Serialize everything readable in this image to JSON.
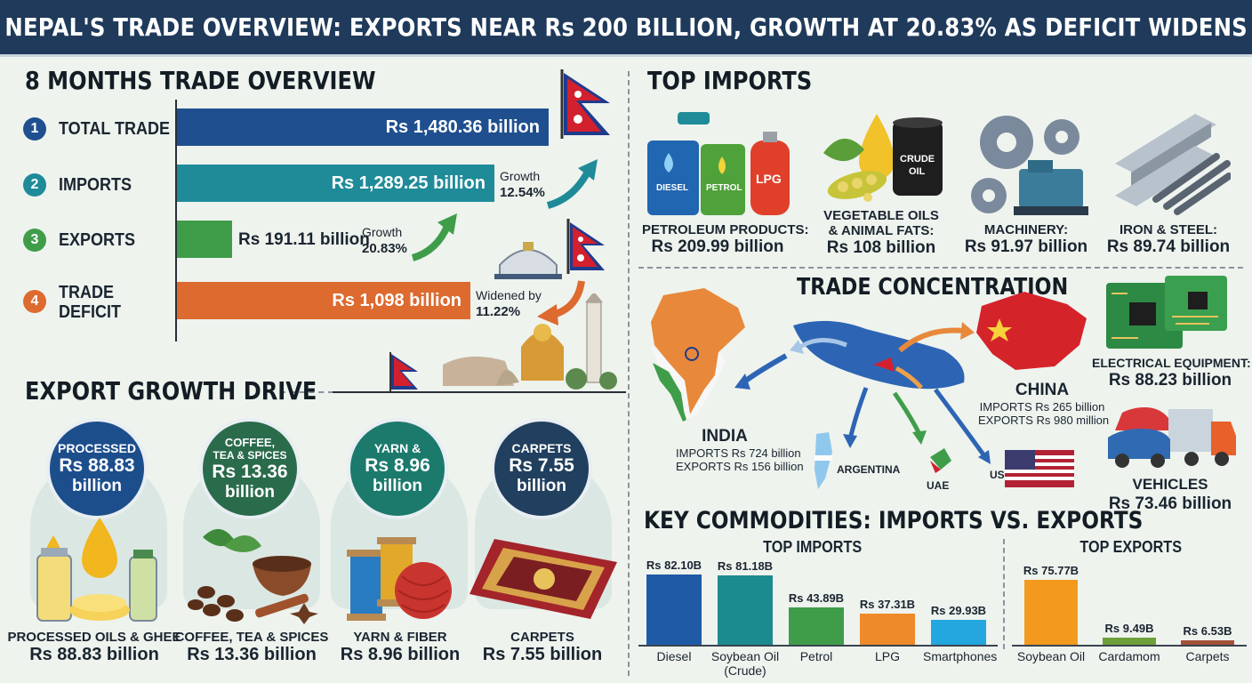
{
  "title": "NEPAL'S TRADE OVERVIEW: EXPORTS NEAR Rs 200 BILLION, GROWTH AT 20.83% AS DEFICIT WIDENS",
  "overview": {
    "heading": "8 MONTHS TRADE OVERVIEW",
    "rows": [
      {
        "num": "1",
        "label": "TOTAL TRADE",
        "value": "Rs 1,480.36 billion",
        "color": "#1f4f8f"
      },
      {
        "num": "2",
        "label": "IMPORTS",
        "value": "Rs 1,289.25 billion",
        "color": "#1f8b99",
        "note_label": "Growth",
        "note_value": "12.54%"
      },
      {
        "num": "3",
        "label": "EXPORTS",
        "value": "Rs 191.11 billion",
        "color": "#3f9d4a",
        "note_label": "Growth",
        "note_value": "20.83%"
      },
      {
        "num": "4",
        "label": "TRADE",
        "label2": "DEFICIT",
        "value": "Rs 1,098 billion",
        "color": "#dd6a2f",
        "note_label": "Widened by",
        "note_value": "11.22%"
      }
    ]
  },
  "export_growth": {
    "heading": "EXPORT GROWTH DRIVE",
    "items": [
      {
        "c1": "PROCESSED",
        "c2": "Rs 88.83",
        "c3": "billion",
        "cap1": "PROCESSED OILS & GHEE",
        "cap2": "Rs 88.83 billion",
        "color": "#1d4e8c"
      },
      {
        "c1": "COFFEE,",
        "c1b": "TEA & SPICES",
        "c2": "Rs 13.36",
        "c3": "billion",
        "cap1": "COFFEE, TEA & SPICES",
        "cap2": "Rs 13.36 billion",
        "color": "#2a6b4c"
      },
      {
        "c1": "YARN &",
        "c2": "Rs 8.96",
        "c3": "billion",
        "cap1": "YARN & FIBER",
        "cap2": "Rs 8.96 billion",
        "color": "#1b7a6c"
      },
      {
        "c1": "CARPETS",
        "c2": "Rs 7.55",
        "c3": "billion",
        "cap1": "CARPETS",
        "cap2": "Rs 7.55 billion",
        "color": "#213f5e"
      }
    ]
  },
  "top_imports": {
    "heading": "TOP IMPORTS",
    "items": [
      {
        "name": "PETROLEUM PRODUCTS:",
        "value": "Rs 209.99 billion"
      },
      {
        "name": "VEGETABLE OILS",
        "name2": "& ANIMAL FATS:",
        "value": "Rs 108 billion"
      },
      {
        "name": "MACHINERY:",
        "value": "Rs 91.97 billion"
      },
      {
        "name": "IRON & STEEL:",
        "value": "Rs 89.74 billion"
      }
    ],
    "fuel_labels": [
      "DIESEL",
      "PETROL",
      "LPG"
    ],
    "barrel_label": "CRUDE",
    "barrel_label2": "OIL"
  },
  "concentration": {
    "heading": "TRADE CONCENTRATION",
    "india": {
      "name": "INDIA",
      "imports": "IMPORTS Rs 724 billion",
      "exports": "EXPORTS Rs 156 billion"
    },
    "china": {
      "name": "CHINA",
      "imports": "IMPORTS Rs 265 billion",
      "exports": "EXPORTS Rs 980 million"
    },
    "others": [
      "ARGENTINA",
      "UAE",
      "US"
    ],
    "electrical": {
      "name": "ELECTRICAL EQUIPMENT:",
      "value": "Rs 88.23 billion"
    },
    "vehicles": {
      "name": "VEHICLES",
      "value": "Rs 73.46 billion"
    }
  },
  "commodities": {
    "heading": "KEY COMMODITIES: IMPORTS VS. EXPORTS",
    "imports_heading": "TOP IMPORTS",
    "exports_heading": "TOP EXPORTS"
  },
  "chart_data": [
    {
      "type": "bar",
      "title": "TOP IMPORTS",
      "categories": [
        "Diesel",
        "Soybean Oil (Crude)",
        "Petrol",
        "LPG",
        "Smartphones"
      ],
      "values": [
        82.1,
        81.18,
        43.89,
        37.31,
        29.93
      ],
      "labels": [
        "Rs 82.10B",
        "Rs 81.18B",
        "Rs 43.89B",
        "Rs 37.31B",
        "Rs 29.93B"
      ],
      "colors": [
        "#1f5aa6",
        "#1c8b8f",
        "#3f9d4a",
        "#ee8a2a",
        "#24a6de"
      ],
      "ylim": [
        0,
        82.1
      ]
    },
    {
      "type": "bar",
      "title": "TOP EXPORTS",
      "categories": [
        "Soybean Oil",
        "Cardamom",
        "Carpets"
      ],
      "values": [
        75.77,
        9.49,
        6.53
      ],
      "labels": [
        "Rs 75.77B",
        "Rs 9.49B",
        "Rs 6.53B"
      ],
      "colors": [
        "#f39a1e",
        "#6e9f3a",
        "#a5523a"
      ],
      "ylim": [
        0,
        82.1
      ]
    }
  ]
}
